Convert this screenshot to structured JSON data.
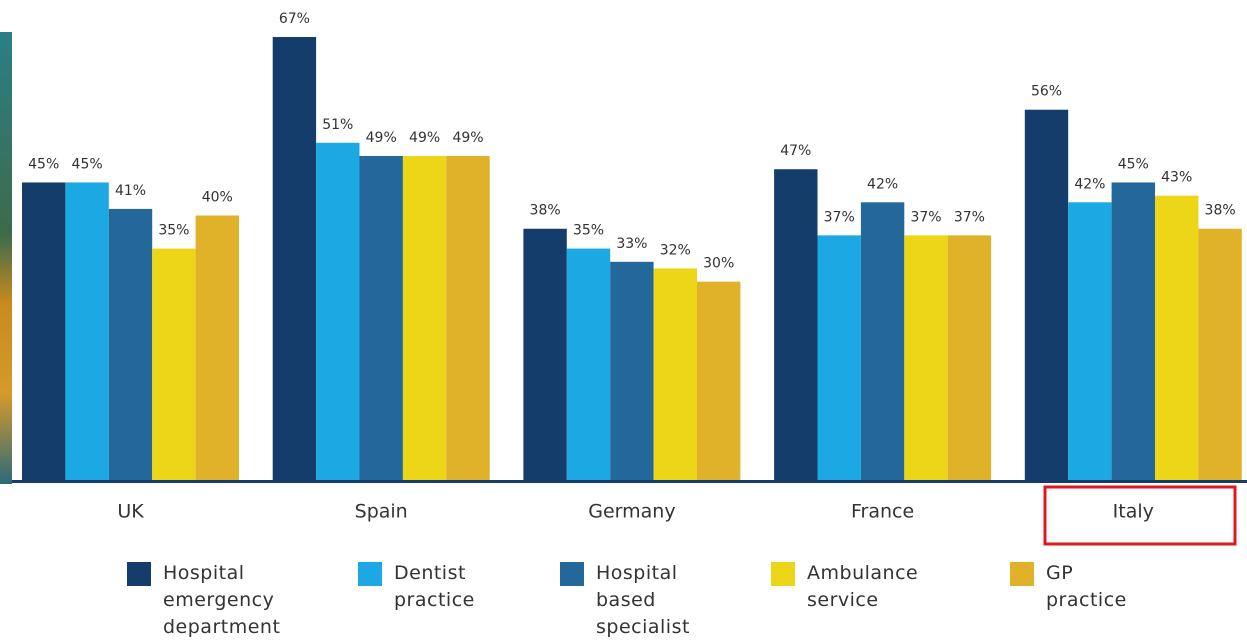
{
  "chart_data": {
    "type": "bar",
    "categories": [
      "UK",
      "Spain",
      "Germany",
      "France",
      "Italy"
    ],
    "series": [
      {
        "name": "Hospital emergency department",
        "color": "#153d6b",
        "values": [
          45,
          67,
          38,
          47,
          56
        ],
        "value_labels": [
          "45%",
          "67%",
          "38%",
          "47%",
          "56%"
        ]
      },
      {
        "name": "Dentist practice",
        "color": "#1ca8e2",
        "values": [
          45,
          51,
          35,
          37,
          42
        ],
        "value_labels": [
          "45%",
          "51%",
          "35%",
          "37%",
          "42%"
        ]
      },
      {
        "name": "Hospital based specialist",
        "color": "#23679b",
        "values": [
          41,
          49,
          33,
          42,
          45
        ],
        "value_labels": [
          "41%",
          "49%",
          "33%",
          "42%",
          "45%"
        ]
      },
      {
        "name": "Ambulance service",
        "color": "#edd517",
        "values": [
          35,
          49,
          32,
          37,
          43
        ],
        "value_labels": [
          "35%",
          "49%",
          "32%",
          "37%",
          "43%"
        ]
      },
      {
        "name": "GP practice",
        "color": "#e0b22a",
        "values": [
          40,
          49,
          30,
          37,
          38
        ],
        "value_labels": [
          "40%",
          "49%",
          "30%",
          "37%",
          "38%"
        ]
      }
    ]
  }
}
